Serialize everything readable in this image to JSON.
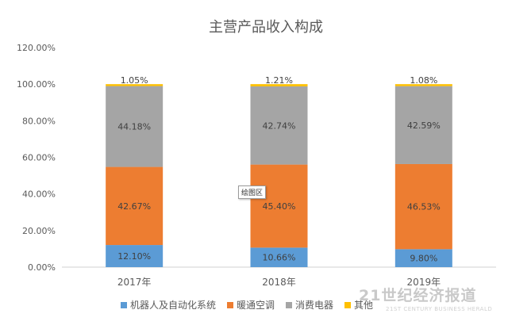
{
  "chart_data": {
    "type": "bar",
    "stacked": true,
    "title": "主营产品收入构成",
    "categories": [
      "2017年",
      "2018年",
      "2019年"
    ],
    "series": [
      {
        "name": "机器人及自动化系统",
        "values": [
          12.1,
          10.66,
          9.8
        ],
        "labels": [
          "12.10%",
          "10.66%",
          "9.80%"
        ],
        "color": "#5B9BD5"
      },
      {
        "name": "暖通空调",
        "values": [
          42.67,
          45.4,
          46.53
        ],
        "labels": [
          "42.67%",
          "45.40%",
          "46.53%"
        ],
        "color": "#ED7D31"
      },
      {
        "name": "消费电器",
        "values": [
          44.18,
          42.74,
          42.59
        ],
        "labels": [
          "44.18%",
          "42.74%",
          "42.59%"
        ],
        "color": "#A5A5A5"
      },
      {
        "name": "其他",
        "values": [
          1.05,
          1.21,
          1.08
        ],
        "labels": [
          "1.05%",
          "1.21%",
          "1.08%"
        ],
        "color": "#FFC000"
      }
    ],
    "ylim": [
      0,
      120
    ],
    "yticks": [
      "0.00%",
      "20.00%",
      "40.00%",
      "60.00%",
      "80.00%",
      "100.00%",
      "120.00%"
    ],
    "grid": false,
    "legend": "bottom"
  },
  "tooltip": "绘图区",
  "watermark": {
    "cn": "21世纪经济报道",
    "en": "21ST CENTURY BUSINESS HERALD"
  }
}
